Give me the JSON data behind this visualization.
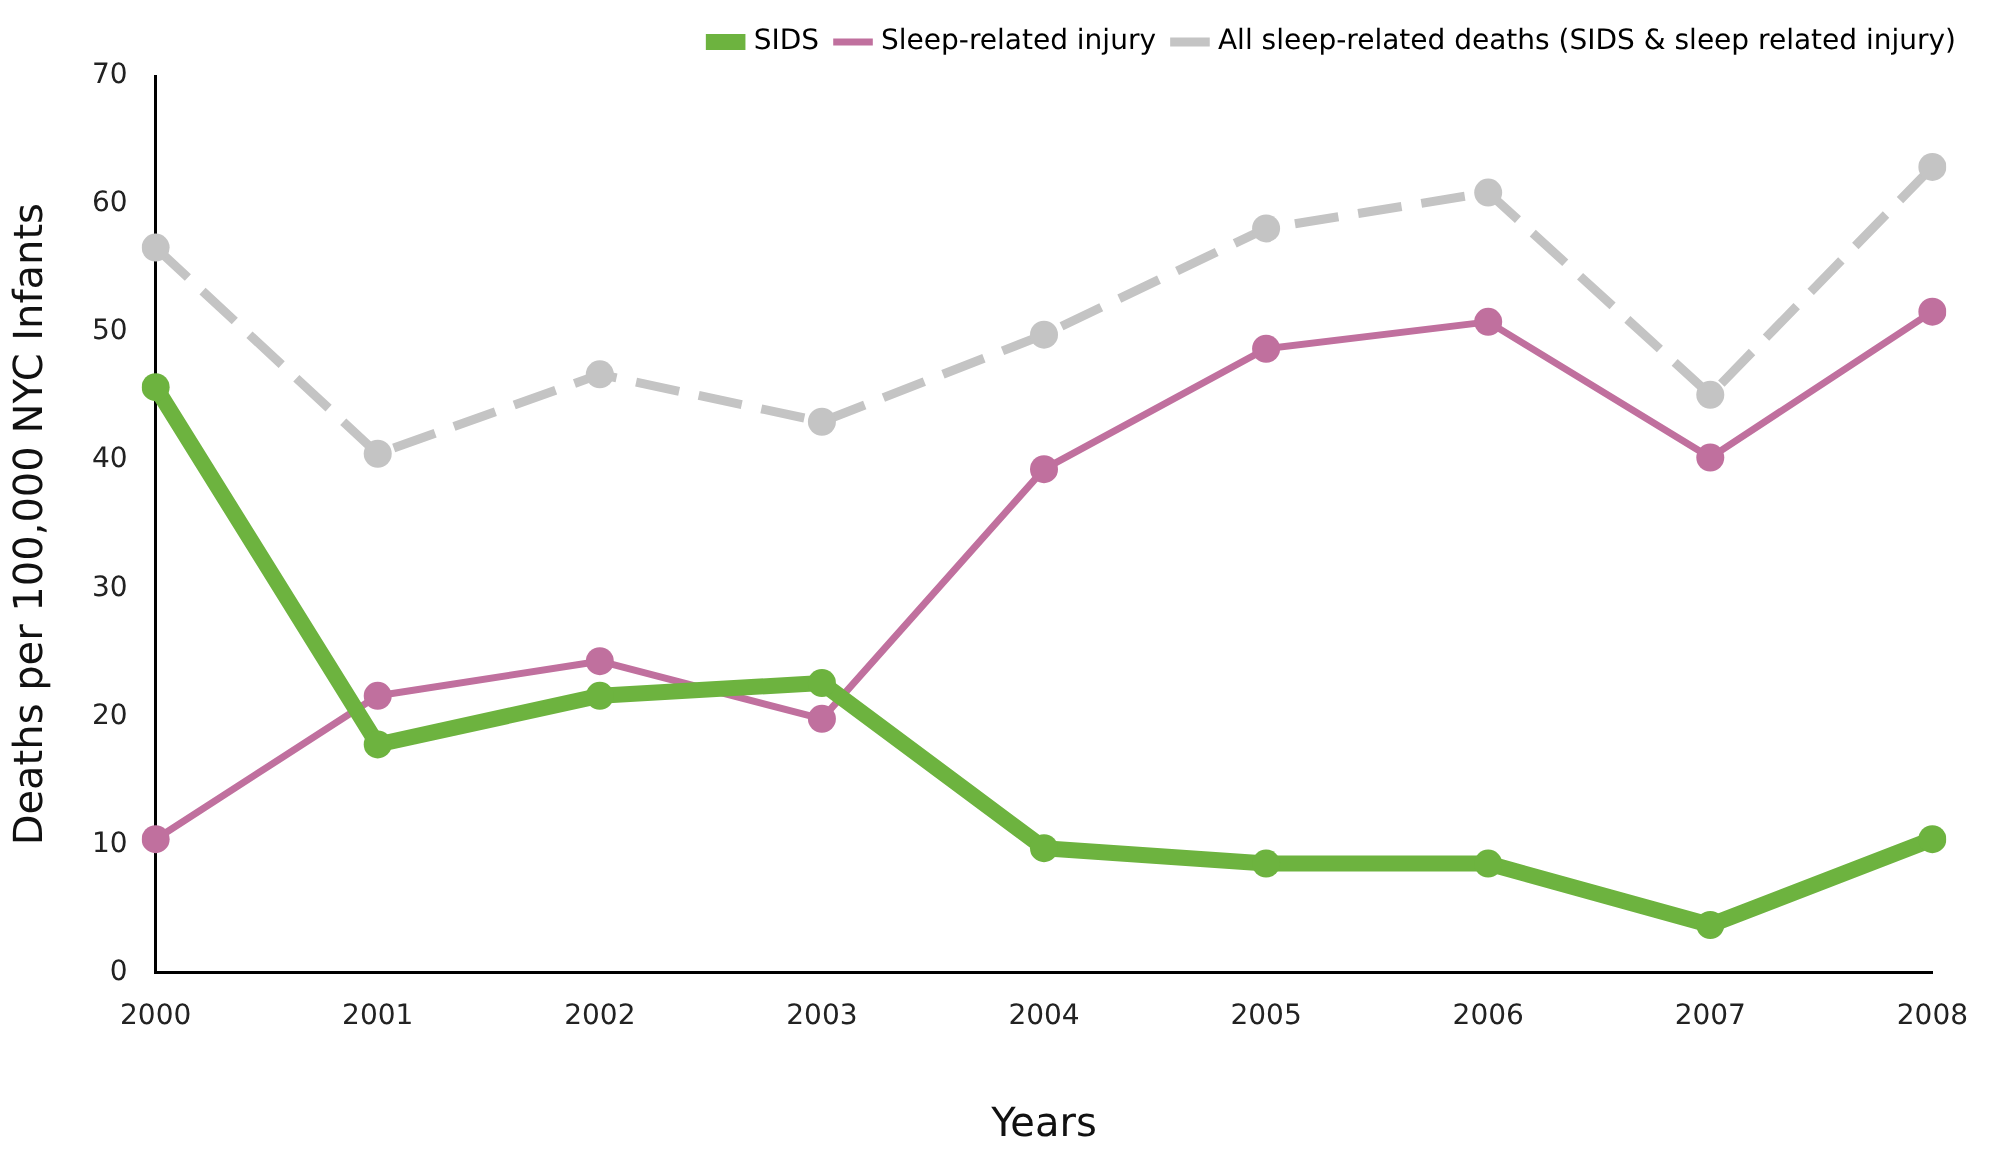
{
  "chart_data": {
    "type": "line",
    "xlabel": "Years",
    "ylabel": "Deaths per 100,000 NYC Infants",
    "categories": [
      "2000",
      "2001",
      "2002",
      "2003",
      "2004",
      "2005",
      "2006",
      "2007",
      "2008"
    ],
    "series": [
      {
        "name": "SIDS",
        "color": "#6db33f",
        "line_style": "solid",
        "values": [
          45.7,
          17.8,
          21.6,
          22.6,
          9.7,
          8.5,
          8.5,
          3.7,
          10.4
        ]
      },
      {
        "name": "Sleep-related injury",
        "color": "#c0709e",
        "line_style": "solid",
        "values": [
          10.4,
          21.6,
          24.3,
          19.8,
          39.3,
          48.7,
          50.8,
          40.2,
          51.6
        ]
      },
      {
        "name": "All sleep-related deaths (SIDS & sleep related injury)",
        "color": "#c4c4c4",
        "line_style": "dashed",
        "values": [
          56.6,
          40.5,
          46.7,
          43.0,
          49.8,
          58.1,
          60.9,
          45.1,
          62.9
        ]
      }
    ],
    "ylim": [
      0,
      70
    ],
    "yticks": [
      0,
      10,
      20,
      30,
      40,
      50,
      60,
      70
    ],
    "grid": false,
    "legend": "top right",
    "marker": "circle"
  }
}
